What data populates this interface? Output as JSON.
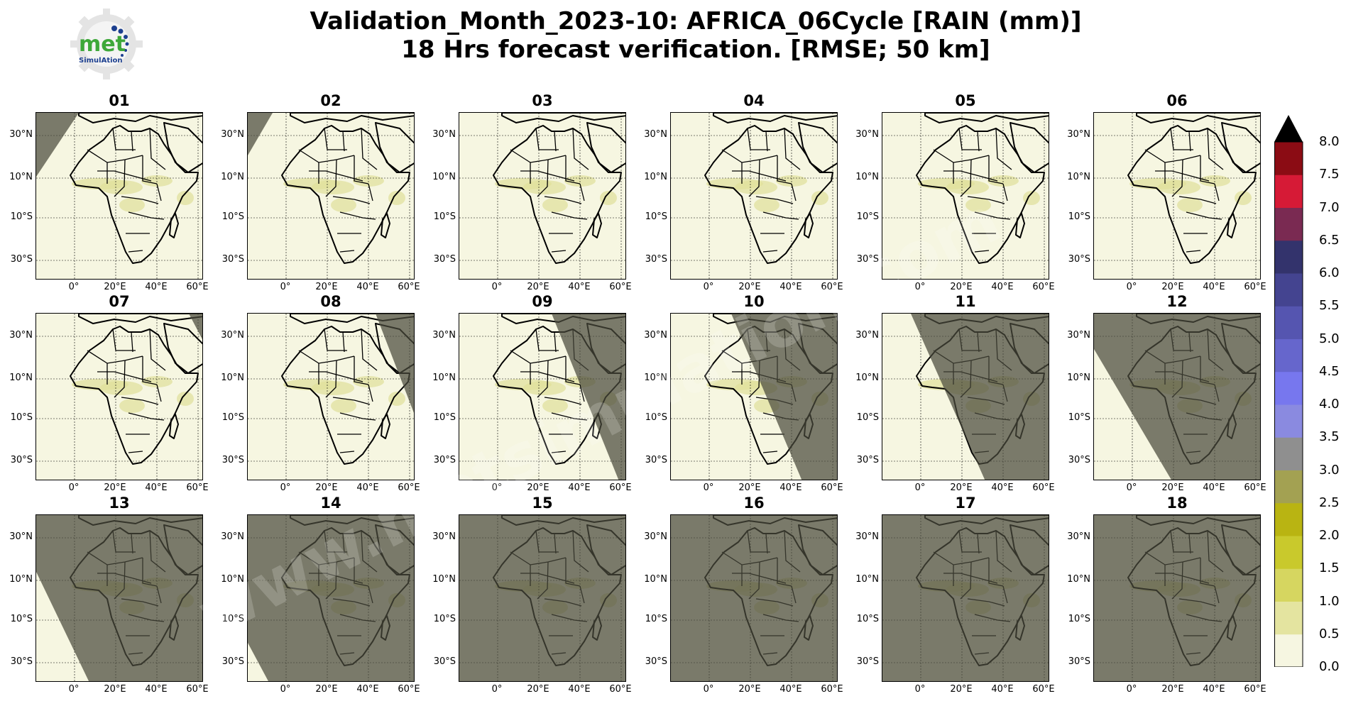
{
  "header": {
    "title_line1": "Validation_Month_2023-10: AFRICA_06Cycle [RAIN (mm)]",
    "title_line2": "18 Hrs forecast verification.  [RMSE; 50 km]"
  },
  "logo": {
    "text_main": "met",
    "text_sub": "SimulAtion"
  },
  "watermark": {
    "text": "www.metsimulation.com"
  },
  "panels": [
    {
      "label": "01",
      "night": [
        [
          0,
          0
        ],
        [
          60,
          0
        ],
        [
          0,
          90
        ]
      ]
    },
    {
      "label": "02",
      "night": [
        [
          0,
          0
        ],
        [
          35,
          0
        ],
        [
          0,
          60
        ]
      ]
    },
    {
      "label": "03",
      "night": []
    },
    {
      "label": "04",
      "night": []
    },
    {
      "label": "05",
      "night": []
    },
    {
      "label": "06",
      "night": []
    },
    {
      "label": "07",
      "night": [
        [
          215,
          0
        ],
        [
          236,
          0
        ],
        [
          236,
          40
        ]
      ]
    },
    {
      "label": "08",
      "night": [
        [
          180,
          0
        ],
        [
          236,
          0
        ],
        [
          236,
          145
        ]
      ]
    },
    {
      "label": "09",
      "night": [
        [
          130,
          0
        ],
        [
          236,
          0
        ],
        [
          236,
          236
        ],
        [
          225,
          236
        ]
      ]
    },
    {
      "label": "10",
      "night": [
        [
          85,
          0
        ],
        [
          236,
          0
        ],
        [
          236,
          236
        ],
        [
          185,
          236
        ]
      ]
    },
    {
      "label": "11",
      "night": [
        [
          40,
          0
        ],
        [
          236,
          0
        ],
        [
          236,
          236
        ],
        [
          145,
          236
        ]
      ]
    },
    {
      "label": "12",
      "night": [
        [
          0,
          0
        ],
        [
          236,
          0
        ],
        [
          236,
          236
        ],
        [
          110,
          236
        ],
        [
          0,
          50
        ]
      ]
    },
    {
      "label": "13",
      "night": [
        [
          0,
          0
        ],
        [
          236,
          0
        ],
        [
          236,
          236
        ],
        [
          75,
          236
        ],
        [
          0,
          80
        ]
      ]
    },
    {
      "label": "14",
      "night": [
        [
          0,
          0
        ],
        [
          236,
          0
        ],
        [
          236,
          236
        ],
        [
          30,
          236
        ],
        [
          0,
          180
        ]
      ]
    },
    {
      "label": "15",
      "night": [
        [
          0,
          0
        ],
        [
          236,
          0
        ],
        [
          236,
          236
        ],
        [
          0,
          236
        ]
      ]
    },
    {
      "label": "16",
      "night": [
        [
          0,
          0
        ],
        [
          236,
          0
        ],
        [
          236,
          236
        ],
        [
          0,
          236
        ]
      ]
    },
    {
      "label": "17",
      "night": [
        [
          0,
          0
        ],
        [
          236,
          0
        ],
        [
          236,
          236
        ],
        [
          0,
          236
        ]
      ]
    },
    {
      "label": "18",
      "night": [
        [
          0,
          0
        ],
        [
          236,
          0
        ],
        [
          236,
          236
        ],
        [
          0,
          236
        ]
      ]
    }
  ],
  "lat_labels": [
    "30°N",
    "10°N",
    "10°S",
    "30°S"
  ],
  "lon_labels": [
    "0°",
    "20°E",
    "40°E",
    "60°E"
  ],
  "colorbar": {
    "ticks": [
      "0.0",
      "0.5",
      "1.0",
      "1.5",
      "2.0",
      "2.5",
      "3.0",
      "3.5",
      "4.0",
      "4.5",
      "5.0",
      "5.5",
      "6.0",
      "6.5",
      "7.0",
      "7.5",
      "8.0"
    ],
    "colors": [
      "#f6f6e1",
      "#e4e4a0",
      "#d6d660",
      "#c9c92c",
      "#b9b412",
      "#a3a152",
      "#8f8f8f",
      "#8a8ae0",
      "#7777ee",
      "#6666cc",
      "#5555b0",
      "#444490",
      "#33336c",
      "#7a2a52",
      "#d61a36",
      "#8b0c14"
    ],
    "extend_color": "#000000"
  }
}
